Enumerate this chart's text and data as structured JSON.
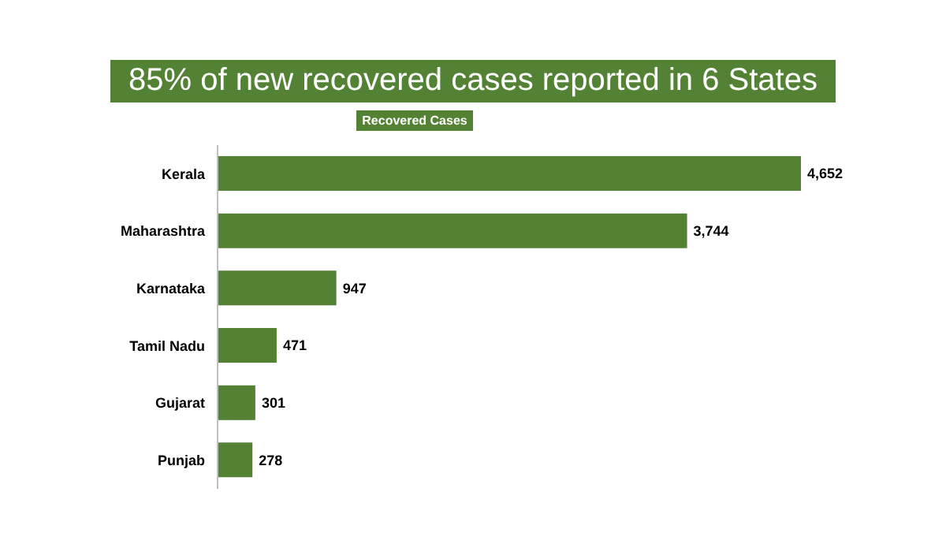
{
  "chart_data": {
    "type": "bar",
    "orientation": "horizontal",
    "title": "85% of new recovered cases reported in 6 States",
    "categories": [
      "Kerala",
      "Maharashtra",
      "Karnataka",
      "Tamil Nadu",
      "Gujarat",
      "Punjab"
    ],
    "series": [
      {
        "name": "Recovered Cases",
        "color": "#548235",
        "values": [
          4652,
          3744,
          947,
          471,
          301,
          278
        ],
        "value_labels": [
          "4,652",
          "3,744",
          "947",
          "471",
          "301",
          "278"
        ]
      }
    ],
    "legend": "top",
    "grid": false
  }
}
